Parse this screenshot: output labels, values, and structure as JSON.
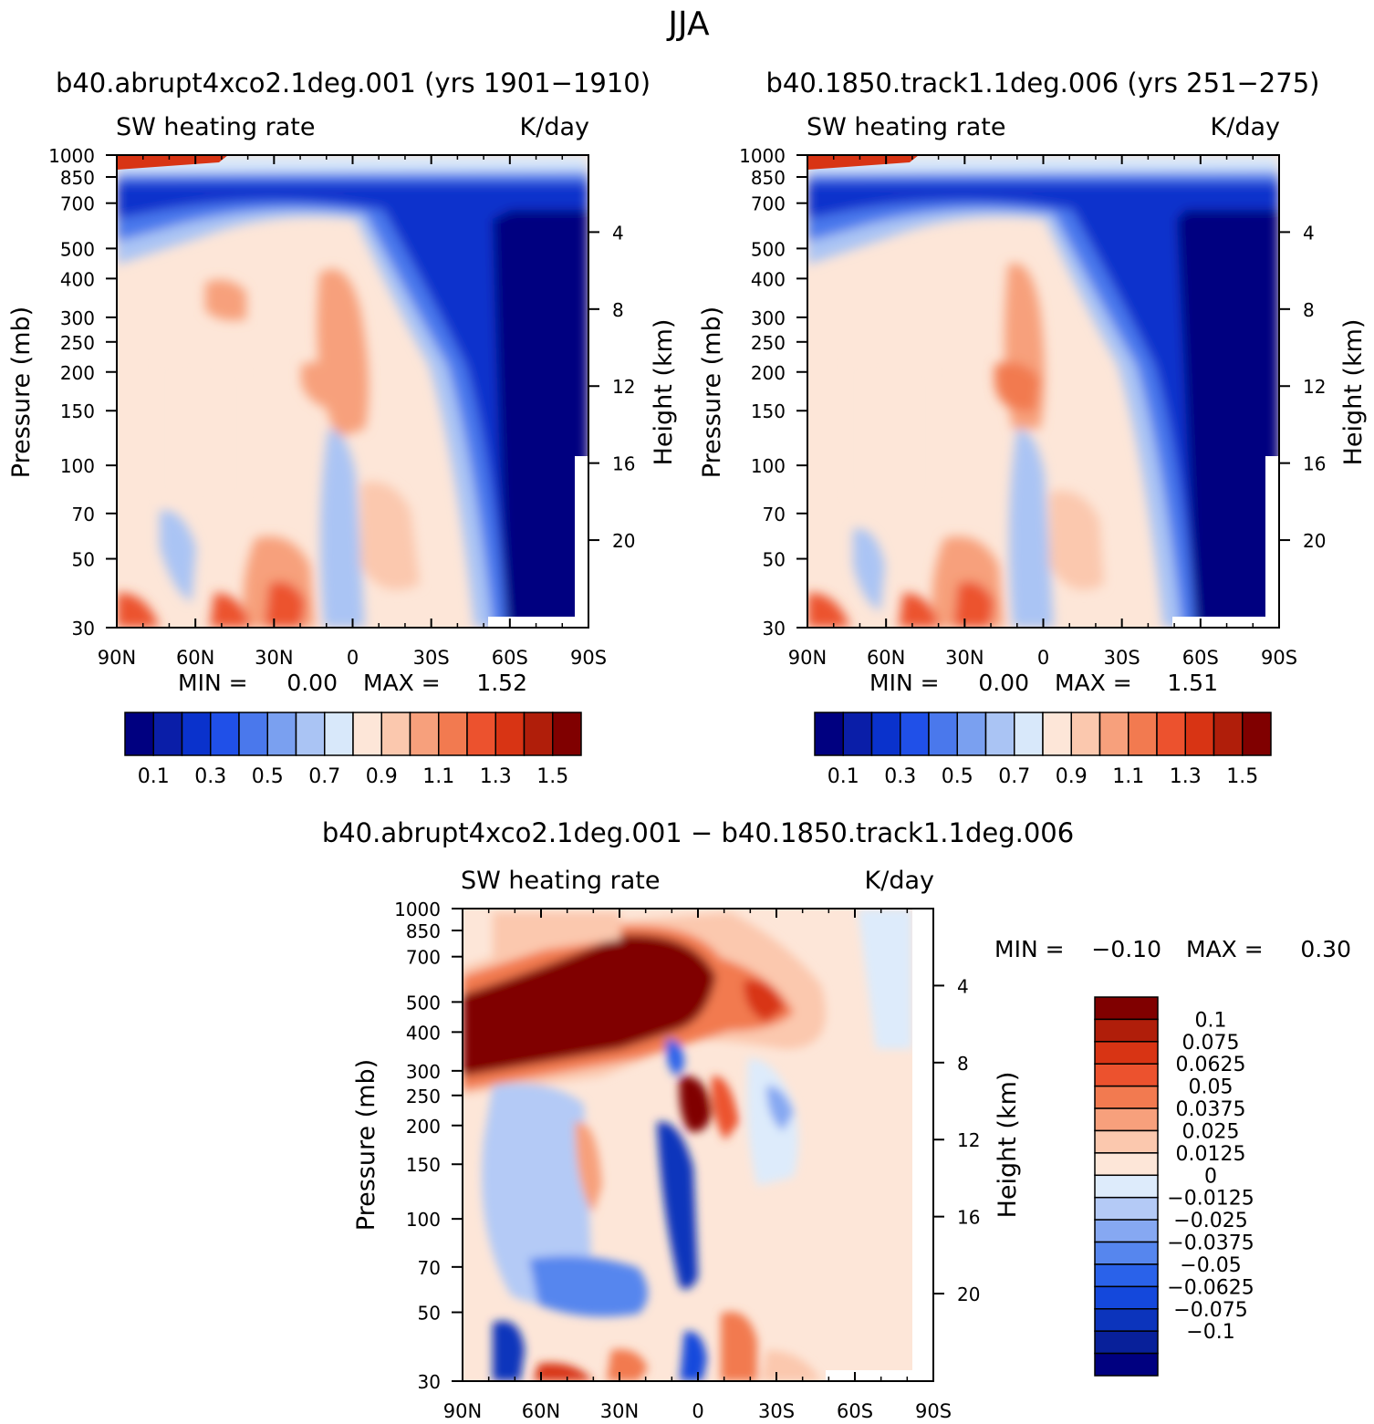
{
  "page": {
    "title": "JJA"
  },
  "colors": {
    "absolute_scale": [
      "#000080",
      "#0a1ea8",
      "#0a32cc",
      "#2050e8",
      "#4a78ec",
      "#7aa0f0",
      "#aac4f4",
      "#d8e8fa",
      "#fde6d8",
      "#fbc8ae",
      "#f7a07c",
      "#f27a50",
      "#ec522e",
      "#d83414",
      "#b01e0a",
      "#800000"
    ],
    "difference_scale": [
      "#000080",
      "#08209a",
      "#0c34bc",
      "#1448dc",
      "#2a62ea",
      "#5686ee",
      "#86a8f2",
      "#b4caf6",
      "#ddebfb",
      "#fde6d8",
      "#fbc8ae",
      "#f7a07c",
      "#f27a50",
      "#ec522e",
      "#d83414",
      "#b01e0a",
      "#800000"
    ]
  },
  "chart_data": [
    {
      "type": "heatmap",
      "title": "b40.abrupt4xco2.1deg.001 (yrs 1901−1910)",
      "left_label": "SW heating rate",
      "right_label": "K/day",
      "ylabel": "Pressure (mb)",
      "ylabel_right": "Height (km)",
      "x_ticks": [
        "90N",
        "60N",
        "30N",
        "0",
        "30S",
        "60S",
        "90S"
      ],
      "y_ticks": [
        "30",
        "50",
        "70",
        "100",
        "150",
        "200",
        "250",
        "300",
        "400",
        "500",
        "700",
        "850",
        "1000"
      ],
      "y_ticks_right": [
        "20",
        "16",
        "12",
        "8",
        "4"
      ],
      "ylim": [
        1000,
        30
      ],
      "min_label": "MIN =",
      "min_value": "0.00",
      "max_label": "MAX =",
      "max_value": "1.52",
      "min": 0.0,
      "max": 1.52,
      "colorbar_labels": [
        "0.1",
        "0.3",
        "0.5",
        "0.7",
        "0.9",
        "1.1",
        "1.3",
        "1.5"
      ]
    },
    {
      "type": "heatmap",
      "title": "b40.1850.track1.1deg.006 (yrs 251−275)",
      "left_label": "SW heating rate",
      "right_label": "K/day",
      "ylabel": "Pressure (mb)",
      "ylabel_right": "Height (km)",
      "x_ticks": [
        "90N",
        "60N",
        "30N",
        "0",
        "30S",
        "60S",
        "90S"
      ],
      "y_ticks": [
        "30",
        "50",
        "70",
        "100",
        "150",
        "200",
        "250",
        "300",
        "400",
        "500",
        "700",
        "850",
        "1000"
      ],
      "y_ticks_right": [
        "20",
        "16",
        "12",
        "8",
        "4"
      ],
      "ylim": [
        1000,
        30
      ],
      "min_label": "MIN =",
      "min_value": "0.00",
      "max_label": "MAX =",
      "max_value": "1.51",
      "min": 0.0,
      "max": 1.51,
      "colorbar_labels": [
        "0.1",
        "0.3",
        "0.5",
        "0.7",
        "0.9",
        "1.1",
        "1.3",
        "1.5"
      ]
    },
    {
      "type": "heatmap",
      "title": "b40.abrupt4xco2.1deg.001 − b40.1850.track1.1deg.006",
      "left_label": "SW heating rate",
      "right_label": "K/day",
      "ylabel": "Pressure (mb)",
      "ylabel_right": "Height (km)",
      "x_ticks": [
        "90N",
        "60N",
        "30N",
        "0",
        "30S",
        "60S",
        "90S"
      ],
      "y_ticks": [
        "30",
        "50",
        "70",
        "100",
        "150",
        "200",
        "250",
        "300",
        "400",
        "500",
        "700",
        "850",
        "1000"
      ],
      "y_ticks_right": [
        "20",
        "16",
        "12",
        "8",
        "4"
      ],
      "ylim": [
        1000,
        30
      ],
      "min_label": "MIN =",
      "min_value": "−0.10",
      "max_label": "MAX =",
      "max_value": "0.30",
      "min": -0.1,
      "max": 0.3,
      "colorbar_labels": [
        "0.1",
        "0.075",
        "0.0625",
        "0.05",
        "0.0375",
        "0.025",
        "0.0125",
        "0",
        "−0.0125",
        "−0.025",
        "−0.0375",
        "−0.05",
        "−0.0625",
        "−0.075",
        "−0.1"
      ]
    }
  ]
}
